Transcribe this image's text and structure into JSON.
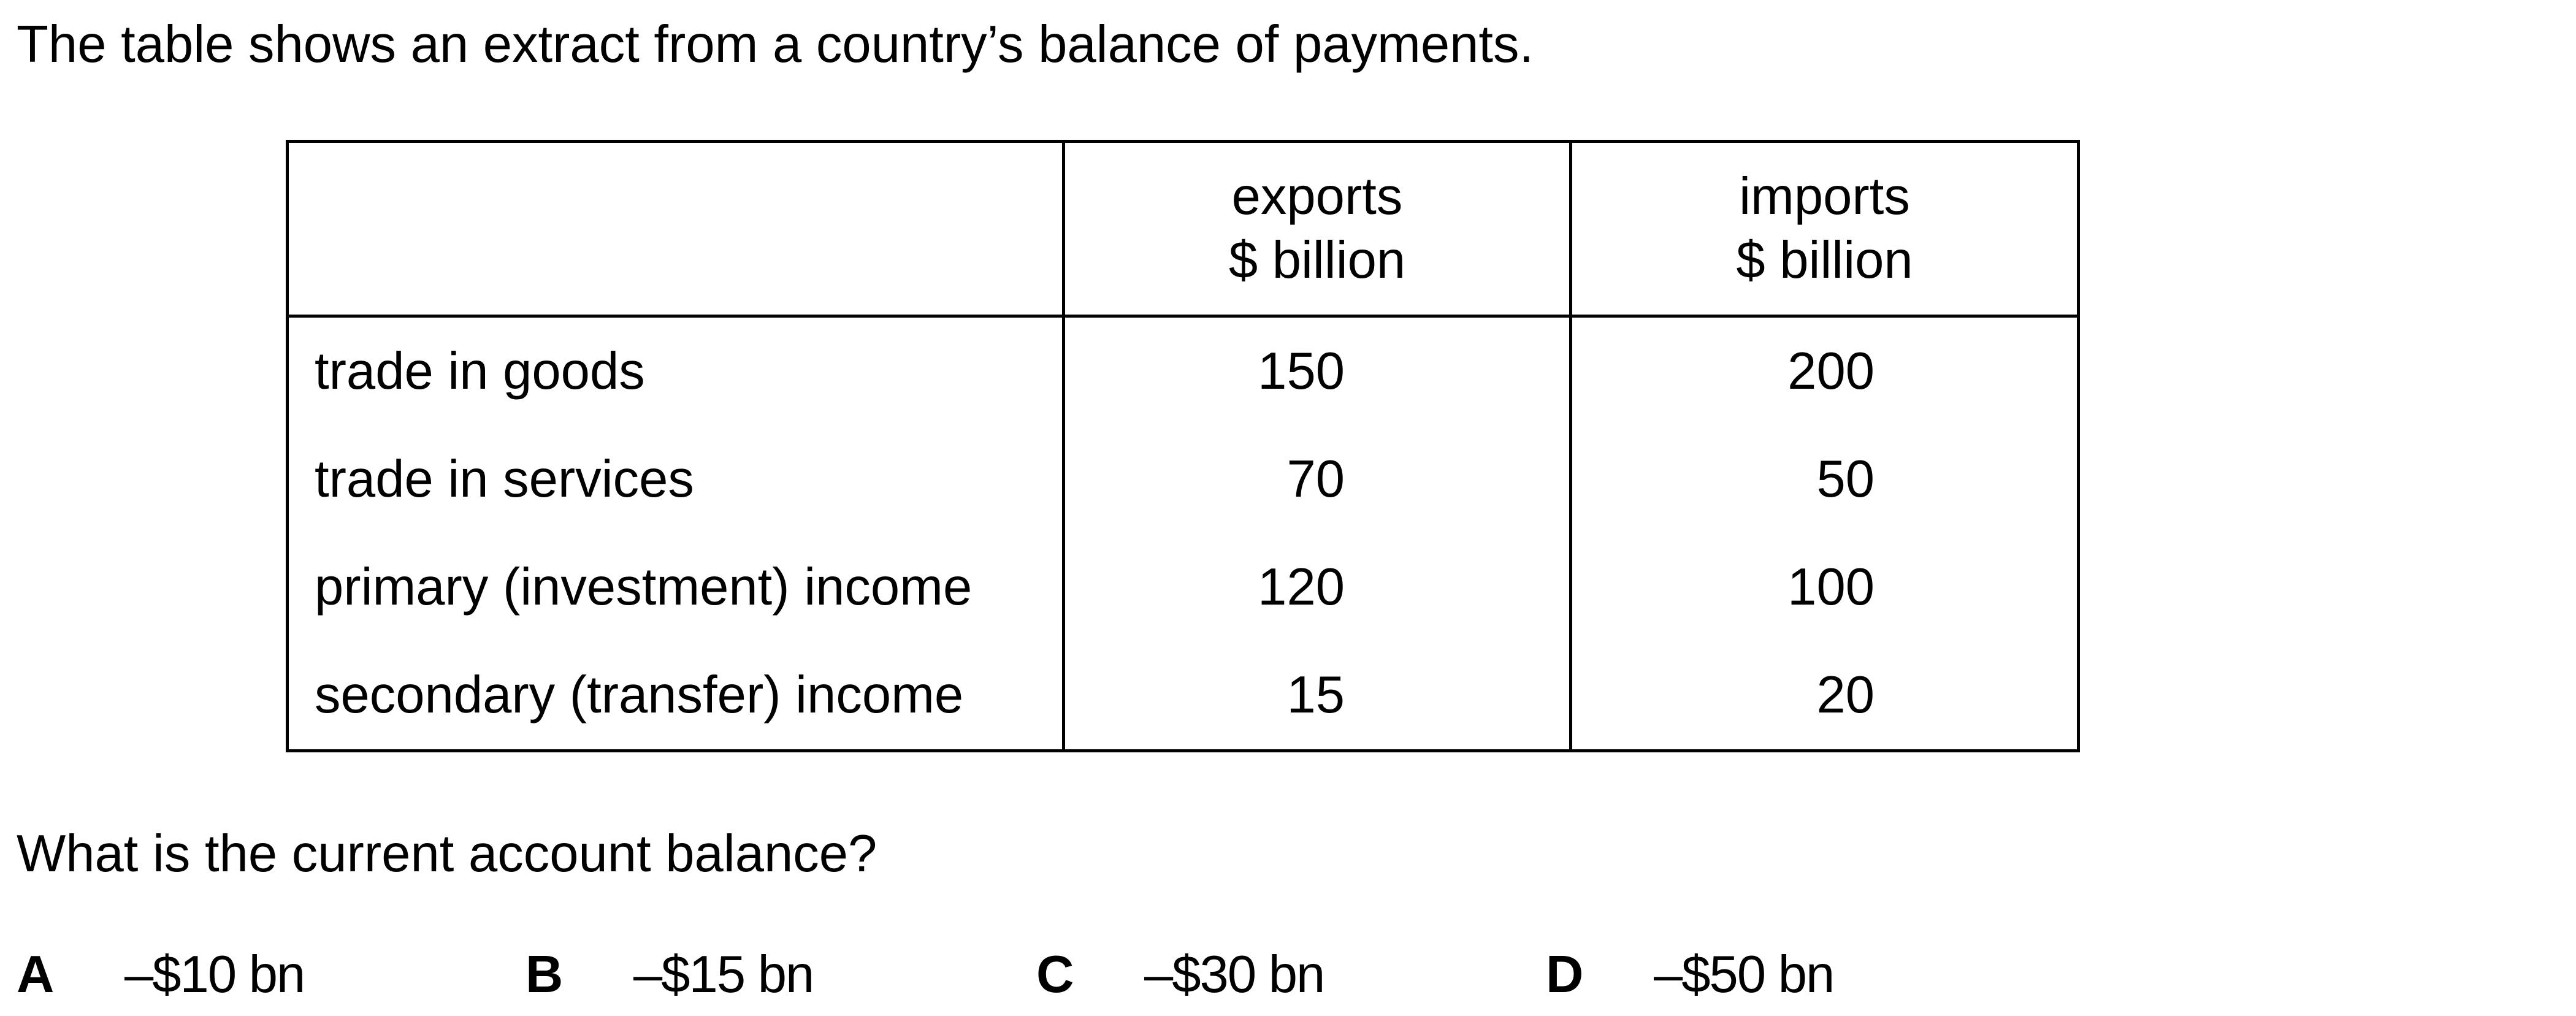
{
  "intro_text": "The table shows an extract from a country’s balance of payments.",
  "table": {
    "headers": [
      {
        "line1": "",
        "line2": ""
      },
      {
        "line1": "exports",
        "line2": "$ billion"
      },
      {
        "line1": "imports",
        "line2": "$ billion"
      }
    ],
    "rows": [
      {
        "label": "trade in goods",
        "exports": "150",
        "imports": "200"
      },
      {
        "label": "trade in services",
        "exports": "70",
        "imports": "50"
      },
      {
        "label": "primary (investment) income",
        "exports": "120",
        "imports": "100"
      },
      {
        "label": "secondary (transfer) income",
        "exports": "15",
        "imports": "20"
      }
    ]
  },
  "question_text": "What is the current account balance?",
  "options": [
    {
      "letter": "A",
      "value": "–$10 bn"
    },
    {
      "letter": "B",
      "value": "–$15 bn"
    },
    {
      "letter": "C",
      "value": "–$30 bn"
    },
    {
      "letter": "D",
      "value": "–$50 bn"
    }
  ]
}
